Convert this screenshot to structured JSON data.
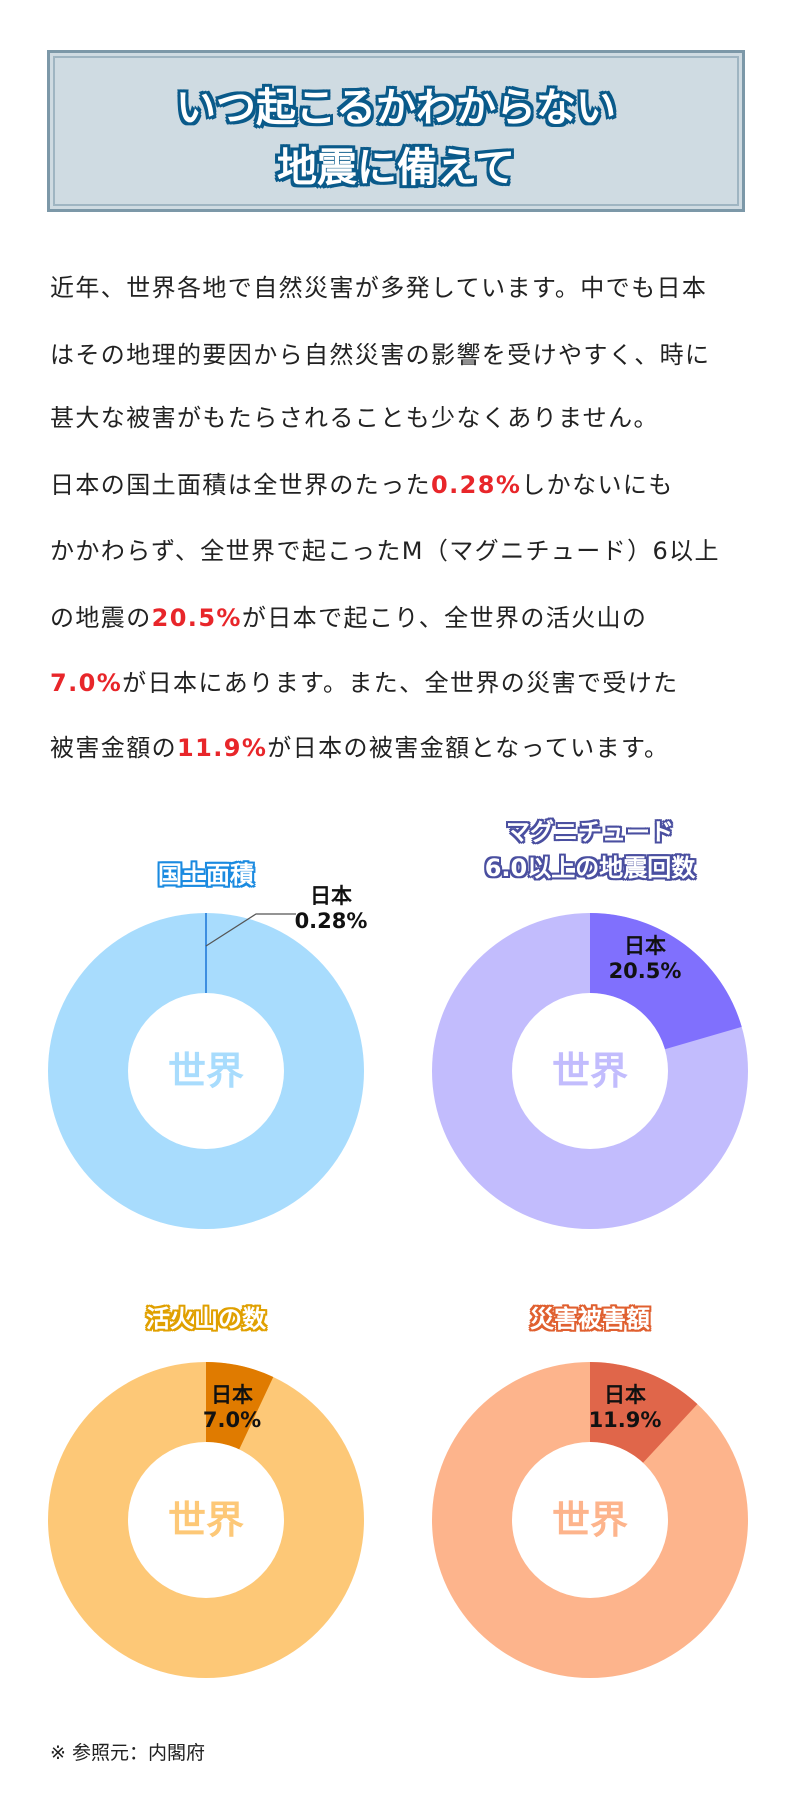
{
  "header": {
    "title_lines": [
      "いつ起こるかわからない",
      "地震に備えて"
    ]
  },
  "body": {
    "lines": [
      [
        {
          "t": "近年、世界各地で自然災害が多発しています。中でも日本"
        }
      ],
      [
        {
          "t": "はその地理的要因から自然災害の影響を受けやすく、時に"
        }
      ],
      [
        {
          "t": "甚大な被害がもたらされることも少なくありません。"
        }
      ],
      [
        {
          "t": "日本の国土面積は全世界のたった"
        },
        {
          "t": "0.28%",
          "hl": true
        },
        {
          "t": "しかないにも"
        }
      ],
      [
        {
          "t": "かかわらず、全世界で起こったM（マグニチュード）6以上"
        }
      ],
      [
        {
          "t": "の地震の"
        },
        {
          "t": "20.5%",
          "hl": true
        },
        {
          "t": "が日本で起こり、全世界の活火山の"
        }
      ],
      [
        {
          "t": "7.0%",
          "hl": true
        },
        {
          "t": "が日本にあります。また、全世界の災害で受けた"
        }
      ],
      [
        {
          "t": "被害金額の"
        },
        {
          "t": "11.9%",
          "hl": true
        },
        {
          "t": "が日本の被害金額となっています。"
        }
      ]
    ]
  },
  "chart_data": [
    {
      "type": "pie",
      "title_lines": [
        "国土面積"
      ],
      "slices": [
        {
          "label": "日本",
          "value": 0.28,
          "value_label": "0.28%"
        },
        {
          "label": "世界",
          "value": 99.72
        }
      ],
      "colors": [
        "#3d8ee0",
        "#a8dcfd"
      ],
      "title_color": "#1a8ae0"
    },
    {
      "type": "pie",
      "title_lines": [
        "マグニチュード",
        "6.0以上の地震回数"
      ],
      "slices": [
        {
          "label": "日本",
          "value": 20.5,
          "value_label": "20.5%"
        },
        {
          "label": "世界",
          "value": 79.5
        }
      ],
      "colors": [
        "#8070fd",
        "#c2bcfd"
      ],
      "title_color": "#4a4fa0"
    },
    {
      "type": "pie",
      "title_lines": [
        "活火山の数"
      ],
      "slices": [
        {
          "label": "日本",
          "value": 7.0,
          "value_label": "7.0%"
        },
        {
          "label": "世界",
          "value": 93.0
        }
      ],
      "colors": [
        "#e07b00",
        "#fdc877"
      ],
      "title_color": "#e0a000"
    },
    {
      "type": "pie",
      "title_lines": [
        "災害被害額"
      ],
      "slices": [
        {
          "label": "日本",
          "value": 11.9,
          "value_label": "11.9%"
        },
        {
          "label": "世界",
          "value": 88.1
        }
      ],
      "colors": [
        "#e0664a",
        "#fdb48c"
      ],
      "title_color": "#e06030"
    }
  ],
  "footnote": "※ 参照元：内閣府"
}
